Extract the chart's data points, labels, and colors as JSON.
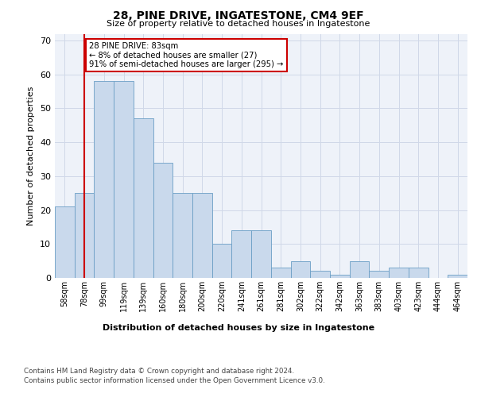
{
  "title1": "28, PINE DRIVE, INGATESTONE, CM4 9EF",
  "title2": "Size of property relative to detached houses in Ingatestone",
  "xlabel": "Distribution of detached houses by size in Ingatestone",
  "ylabel": "Number of detached properties",
  "categories": [
    "58sqm",
    "78sqm",
    "99sqm",
    "119sqm",
    "139sqm",
    "160sqm",
    "180sqm",
    "200sqm",
    "220sqm",
    "241sqm",
    "261sqm",
    "281sqm",
    "302sqm",
    "322sqm",
    "342sqm",
    "363sqm",
    "383sqm",
    "403sqm",
    "423sqm",
    "444sqm",
    "464sqm"
  ],
  "values": [
    21,
    25,
    58,
    58,
    47,
    34,
    25,
    25,
    10,
    14,
    14,
    3,
    5,
    2,
    1,
    5,
    2,
    3,
    3,
    0,
    1
  ],
  "bar_color": "#c9d9ec",
  "bar_edge_color": "#6a9ec5",
  "vline_x": 1,
  "vline_color": "#cc0000",
  "annotation_text": "28 PINE DRIVE: 83sqm\n← 8% of detached houses are smaller (27)\n91% of semi-detached houses are larger (295) →",
  "annotation_box_color": "#ffffff",
  "annotation_box_edge": "#cc0000",
  "ylim": [
    0,
    72
  ],
  "yticks": [
    0,
    10,
    20,
    30,
    40,
    50,
    60,
    70
  ],
  "grid_color": "#d0d8e8",
  "background_color": "#eef2f9",
  "footer1": "Contains HM Land Registry data © Crown copyright and database right 2024.",
  "footer2": "Contains public sector information licensed under the Open Government Licence v3.0."
}
